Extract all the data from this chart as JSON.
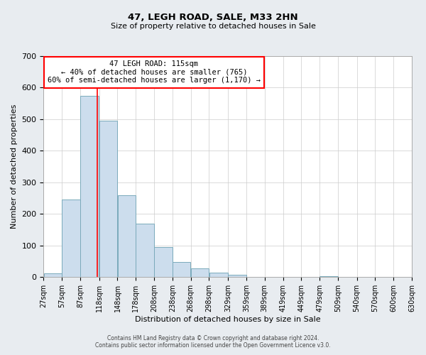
{
  "title": "47, LEGH ROAD, SALE, M33 2HN",
  "subtitle": "Size of property relative to detached houses in Sale",
  "xlabel": "Distribution of detached houses by size in Sale",
  "ylabel": "Number of detached properties",
  "bin_edges": [
    27,
    57,
    87,
    118,
    148,
    178,
    208,
    238,
    268,
    298,
    329,
    359,
    389,
    419,
    449,
    479,
    509,
    540,
    570,
    600,
    630
  ],
  "bar_heights": [
    12,
    245,
    575,
    495,
    260,
    170,
    95,
    48,
    27,
    15,
    8,
    0,
    0,
    0,
    0,
    4,
    0,
    0,
    0,
    0
  ],
  "bar_color": "#ccdded",
  "bar_edge_color": "#7aaabb",
  "red_line_x": 115,
  "ylim": [
    0,
    700
  ],
  "yticks": [
    0,
    100,
    200,
    300,
    400,
    500,
    600,
    700
  ],
  "annotation_title": "47 LEGH ROAD: 115sqm",
  "annotation_line2": "← 40% of detached houses are smaller (765)",
  "annotation_line3": "60% of semi-detached houses are larger (1,170) →",
  "footer1": "Contains HM Land Registry data © Crown copyright and database right 2024.",
  "footer2": "Contains public sector information licensed under the Open Government Licence v3.0.",
  "background_color": "#e8ecf0",
  "plot_bg_color": "#ffffff",
  "grid_color": "#cccccc"
}
